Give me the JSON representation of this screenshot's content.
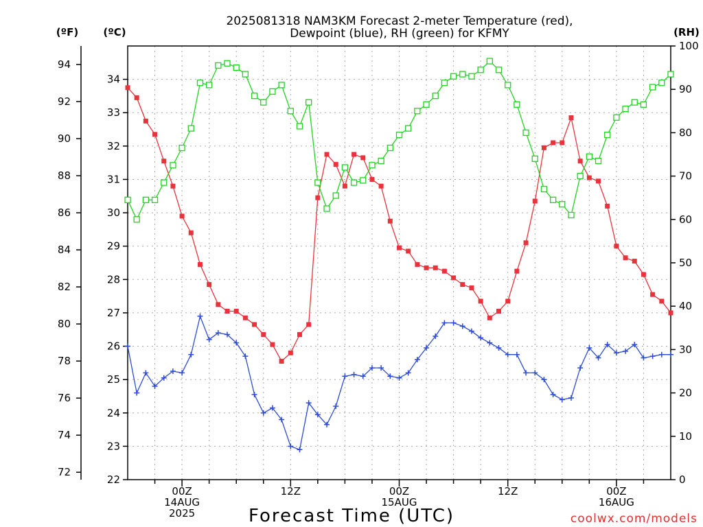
{
  "chart_data": {
    "type": "line",
    "title": [
      "2025081318 NAM3KM Forecast 2-meter Temperature (red),",
      "Dewpoint (blue), RH (green) for KFMY"
    ],
    "xlabel": "Forecast Time (UTC)",
    "credit": "coolwx.com/models",
    "axes": {
      "left_f": {
        "label": "(ºF)",
        "min": 71.6,
        "max": 95.0,
        "ticks": [
          72,
          74,
          76,
          78,
          80,
          82,
          84,
          86,
          88,
          90,
          92,
          94
        ]
      },
      "left_c": {
        "label": "(ºC)",
        "min": 22,
        "max": 35,
        "ticks": [
          22,
          23,
          24,
          25,
          26,
          27,
          28,
          29,
          30,
          31,
          32,
          33,
          34
        ]
      },
      "right_rh": {
        "label": "(RH)",
        "min": 0,
        "max": 100,
        "ticks": [
          0,
          10,
          20,
          30,
          40,
          50,
          60,
          70,
          80,
          90,
          100
        ]
      }
    },
    "x_hours": {
      "start": 18,
      "end": 78,
      "step": 1
    },
    "x_ticks": [
      {
        "hour": 24,
        "lines": [
          "00Z",
          "14AUG",
          "2025"
        ]
      },
      {
        "hour": 36,
        "lines": [
          "12Z"
        ]
      },
      {
        "hour": 48,
        "lines": [
          "00Z",
          "15AUG"
        ]
      },
      {
        "hour": 60,
        "lines": [
          "12Z"
        ]
      },
      {
        "hour": 72,
        "lines": [
          "00Z",
          "16AUG"
        ]
      }
    ],
    "grid": true,
    "series": [
      {
        "name": "Temperature",
        "axis": "left_c",
        "color": "#e8323c",
        "marker": "filled-square",
        "values": [
          33.75,
          33.45,
          32.75,
          32.35,
          31.55,
          30.8,
          29.9,
          29.4,
          28.45,
          27.85,
          27.25,
          27.05,
          27.05,
          26.85,
          26.65,
          26.35,
          26.05,
          25.55,
          25.8,
          26.35,
          26.65,
          30.45,
          31.75,
          31.45,
          30.8,
          31.75,
          31.65,
          31.0,
          30.8,
          29.75,
          28.95,
          28.85,
          28.45,
          28.35,
          28.35,
          28.25,
          28.05,
          27.85,
          27.75,
          27.35,
          26.85,
          27.05,
          27.35,
          28.25,
          29.1,
          30.35,
          31.95,
          32.1,
          32.1,
          32.85,
          31.55,
          31.05,
          30.95,
          30.2,
          29.0,
          28.65,
          28.55,
          28.15,
          27.55,
          27.35,
          27.0
        ]
      },
      {
        "name": "Dewpoint",
        "axis": "left_c",
        "color": "#2c4ad6",
        "marker": "plus",
        "values": [
          26.0,
          24.6,
          25.2,
          24.8,
          25.05,
          25.25,
          25.2,
          25.75,
          26.9,
          26.2,
          26.4,
          26.35,
          26.1,
          25.7,
          24.55,
          24.0,
          24.15,
          23.8,
          23.0,
          22.9,
          24.3,
          23.95,
          23.65,
          24.2,
          25.1,
          25.15,
          25.1,
          25.35,
          25.35,
          25.1,
          25.05,
          25.2,
          25.6,
          25.95,
          26.3,
          26.7,
          26.7,
          26.6,
          26.45,
          26.25,
          26.1,
          25.95,
          25.75,
          25.75,
          25.2,
          25.2,
          25.0,
          24.55,
          24.4,
          24.45,
          25.35,
          25.95,
          25.65,
          26.05,
          25.8,
          25.85,
          26.05,
          25.65,
          25.7,
          25.75,
          25.75
        ]
      },
      {
        "name": "RH",
        "axis": "right_rh",
        "color": "#1fd41f",
        "marker": "open-square",
        "values": [
          64.5,
          60.0,
          64.5,
          64.5,
          68.5,
          72.5,
          76.5,
          81.0,
          91.5,
          91.0,
          95.5,
          96.0,
          95.0,
          93.5,
          88.5,
          87.0,
          89.5,
          91.0,
          85.0,
          81.5,
          87.0,
          68.5,
          62.5,
          65.5,
          72.0,
          68.5,
          69.0,
          72.5,
          73.5,
          76.5,
          79.5,
          81.0,
          85.0,
          86.5,
          88.5,
          91.5,
          93.0,
          93.5,
          93.0,
          94.5,
          96.5,
          94.5,
          91.0,
          86.5,
          80.0,
          74.0,
          67.0,
          64.5,
          63.5,
          61.0,
          70.0,
          74.5,
          73.5,
          79.5,
          83.5,
          85.5,
          87.0,
          86.5,
          90.5,
          91.5,
          93.5
        ]
      }
    ]
  }
}
